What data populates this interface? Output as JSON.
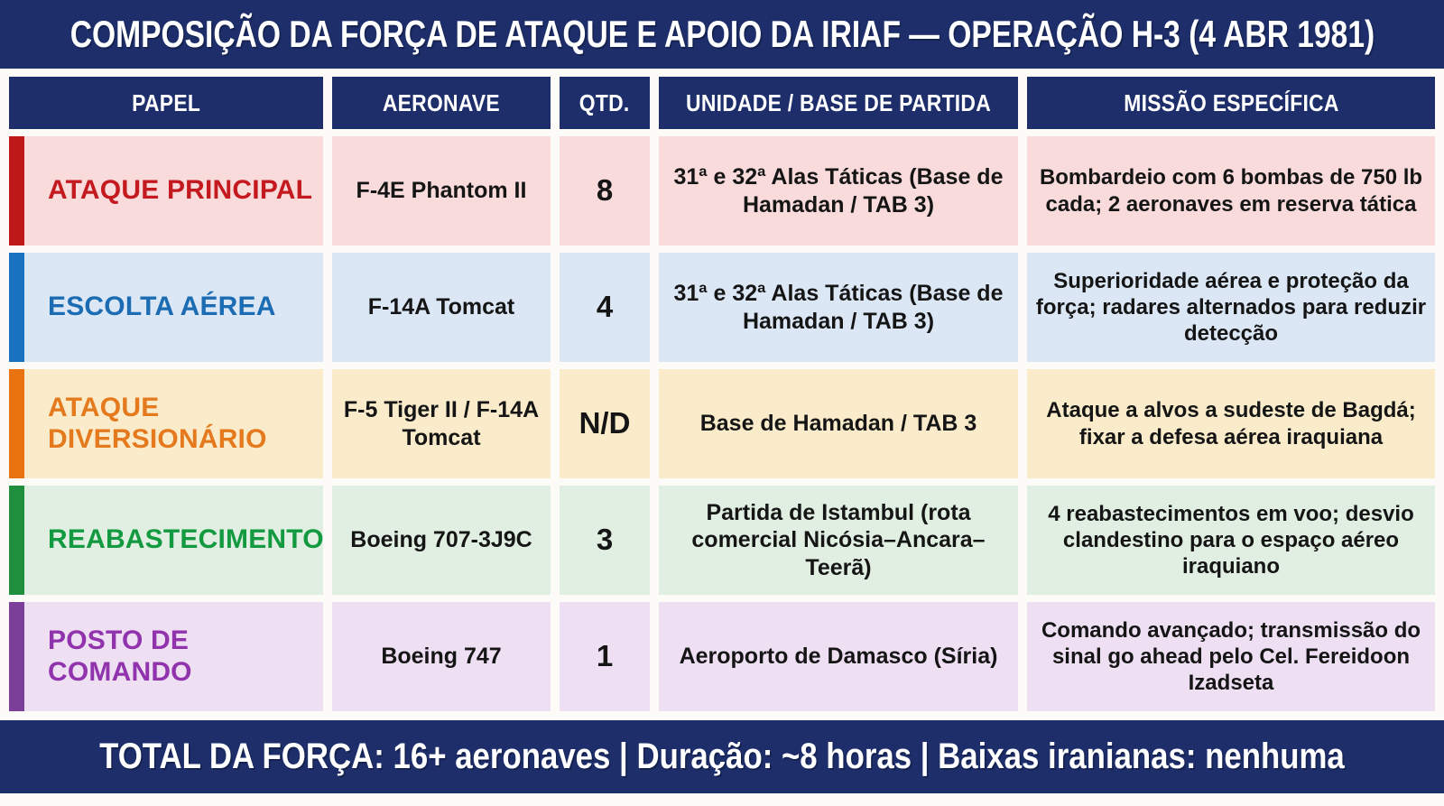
{
  "title": "COMPOSIÇÃO DA FORÇA DE ATAQUE E APOIO DA IRIAF — OPERAÇÃO H-3 (4 ABR 1981)",
  "footer": "TOTAL DA FORÇA: 16+ aeronaves | Duração: ~8 horas | Baixas iranianas: nenhuma",
  "colors": {
    "navy": "#1d2e6b",
    "page_background": "#fcfbf8",
    "body_text": "#151515"
  },
  "chart_data": {
    "type": "table",
    "title": "COMPOSIÇÃO DA FORÇA DE ATAQUE E APOIO DA IRIAF — OPERAÇÃO H-3 (4 ABR 1981)",
    "footer": "TOTAL DA FORÇA: 16+ aeronaves | Duração: ~8 horas | Baixas iranianas: nenhuma",
    "columns": [
      "PAPEL",
      "AERONAVE",
      "QTD.",
      "UNIDADE / BASE DE PARTIDA",
      "MISSÃO ESPECÍFICA"
    ],
    "rows": [
      {
        "papel": "ATAQUE PRINCIPAL",
        "aeronave": "F-4E Phantom II",
        "qtd": "8",
        "unidade": "31ª e 32ª Alas Táticas (Base de Hamadan / TAB 3)",
        "missao": "Bombardeio com 6 bombas de 750 lb cada; 2 aeronaves em reserva tática",
        "accent": "#bf1818",
        "label_color": "#c41a1f",
        "bg": "#f9dbdb"
      },
      {
        "papel": "ESCOLTA AÉREA",
        "aeronave": "F-14A Tomcat",
        "qtd": "4",
        "unidade": "31ª e 32ª Alas Táticas (Base de Hamadan / TAB 3)",
        "missao": "Superioridade aérea e proteção da força; radares alternados para reduzir detecção",
        "accent": "#1a73c1",
        "label_color": "#1b6cb3",
        "bg": "#dbe7f5"
      },
      {
        "papel": "ATAQUE DIVERSIONÁRIO",
        "aeronave": "F-5 Tiger II / F-14A Tomcat",
        "qtd": "N/D",
        "unidade": "Base de Hamadan / TAB 3",
        "missao": "Ataque a alvos a sudeste de Bagdá; fixar a defesa aérea iraquiana",
        "accent": "#e8730f",
        "label_color": "#e5791d",
        "bg": "#faecca"
      },
      {
        "papel": "REABASTECIMENTO",
        "aeronave": "Boeing 707-3J9C",
        "qtd": "3",
        "unidade": "Partida de Istambul (rota comercial Nicósia–Ancara–Teerã)",
        "missao": "4 reabastecimentos em voo; desvio clandestino para o espaço aéreo iraquiano",
        "accent": "#1f8e3d",
        "label_color": "#13993f",
        "bg": "#e0efe2"
      },
      {
        "papel": "POSTO DE COMANDO",
        "aeronave": "Boeing 747",
        "qtd": "1",
        "unidade": "Aeroporto de Damasco (Síria)",
        "missao": "Comando avançado; transmissão do sinal go ahead pelo Cel. Fereidoon Izadseta",
        "accent": "#7b3f99",
        "label_color": "#9033ad",
        "bg": "#eedff3"
      }
    ]
  }
}
